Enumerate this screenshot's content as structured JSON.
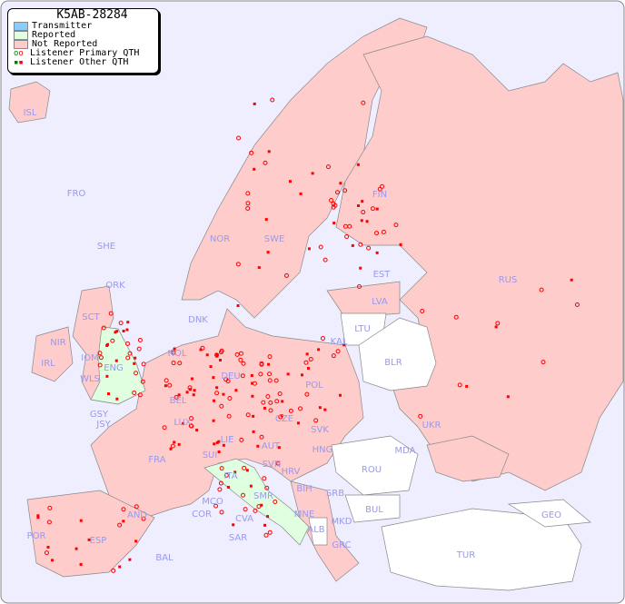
{
  "legend": {
    "title": "K5AB-28284",
    "items": [
      {
        "label": "Transmitter",
        "color": "#87cefa"
      },
      {
        "label": "Reported",
        "color": "#e0ffe0"
      },
      {
        "label": "Not Reported",
        "color": "#ffcccc"
      },
      {
        "label": "Listener Primary QTH",
        "icon": "circle",
        "color": "#ff0000"
      },
      {
        "label": "Listener Other QTH",
        "icon": "square",
        "color": "#ff0000"
      }
    ]
  },
  "colors": {
    "sea": "#eeeeff",
    "not_reported": "#ffcccc",
    "reported": "#e0ffe0",
    "no_data": "#ffffff",
    "label": "#9999ee",
    "listener": "#ff0000"
  },
  "countries": [
    "ISL",
    "FRO",
    "SHE",
    "ORK",
    "NOR",
    "SWE",
    "FIN",
    "EST",
    "RUS",
    "LVA",
    "LTU",
    "KAL",
    "BLR",
    "DNK",
    "HOL",
    "DEU",
    "POL",
    "IRL",
    "SCT",
    "NIR",
    "IOM",
    "WLS",
    "ENG",
    "GSY",
    "JSY",
    "BEL",
    "LUX",
    "CZE",
    "SVK",
    "UKR",
    "MDA",
    "FRA",
    "SUI",
    "LIE",
    "AUT",
    "HNG",
    "SVN",
    "HRV",
    "ROU",
    "ITA",
    "BIH",
    "SRB",
    "MCO",
    "SMR",
    "BUL",
    "GEO",
    "AND",
    "COR",
    "CVA",
    "MNE",
    "MKD",
    "ALB",
    "POR",
    "ESP",
    "SAR",
    "GRC",
    "TUR",
    "BAL"
  ]
}
